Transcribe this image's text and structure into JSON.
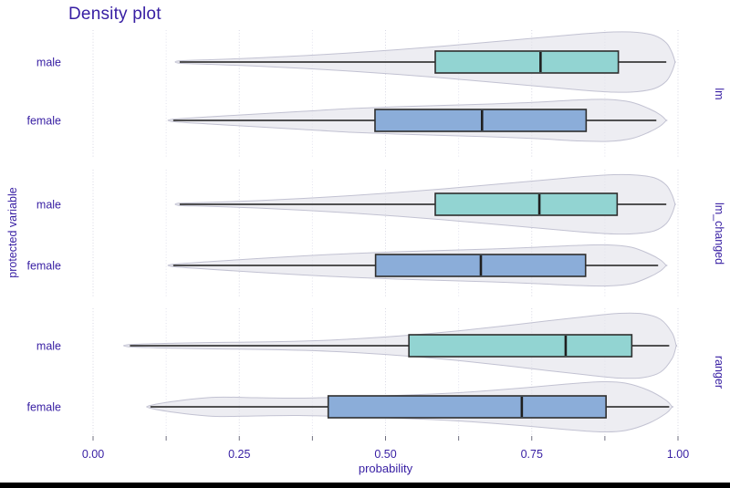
{
  "title": "Density plot",
  "chart_data": {
    "type": "violin",
    "title": "Density plot",
    "xlabel": "probability",
    "ylabel": "protected variable",
    "x_tick_labels": [
      "0.00",
      "0.25",
      "0.50",
      "0.75",
      "1.00"
    ],
    "x_tick_values": [
      0,
      0.25,
      0.5,
      0.75,
      1.0
    ],
    "x_minor_step": 0.125,
    "xlim": [
      0,
      1
    ],
    "grid": true,
    "legend_position": "none",
    "group_labels": [
      "male",
      "female"
    ],
    "colors": {
      "text": "#371ea3",
      "male_fill": "#92d4d2",
      "female_fill": "#8badd9",
      "violin_fill": "#e3e3eb",
      "violin_stroke": "#c2c2d2",
      "box_stroke": "#2e2e2e",
      "whisker": "#3a3a3a",
      "grid_major": "#d7d7e3",
      "grid_minor": "#e2e2ee",
      "tick": "#707080"
    },
    "facets": [
      {
        "label": "lm",
        "rows": [
          {
            "group": "male",
            "fill": "#92d4d2",
            "stats": {
              "min": 0.148,
              "q1": 0.585,
              "median": 0.765,
              "q3": 0.898,
              "max": 0.98
            },
            "density": [
              [
                0.147,
                1.2
              ],
              [
                0.2,
                2.5
              ],
              [
                0.28,
                4.5
              ],
              [
                0.36,
                7
              ],
              [
                0.44,
                10
              ],
              [
                0.52,
                13.5
              ],
              [
                0.6,
                17.5
              ],
              [
                0.68,
                22
              ],
              [
                0.76,
                26.5
              ],
              [
                0.83,
                30.5
              ],
              [
                0.89,
                33
              ],
              [
                0.93,
                32.5
              ],
              [
                0.96,
                29
              ],
              [
                0.98,
                21
              ],
              [
                0.99,
                10
              ],
              [
                0.995,
                0
              ]
            ]
          },
          {
            "group": "female",
            "fill": "#8badd9",
            "stats": {
              "min": 0.137,
              "q1": 0.482,
              "median": 0.665,
              "q3": 0.843,
              "max": 0.963
            },
            "density": [
              [
                0.136,
                1.2
              ],
              [
                0.2,
                4
              ],
              [
                0.28,
                7
              ],
              [
                0.36,
                10
              ],
              [
                0.44,
                13
              ],
              [
                0.52,
                15
              ],
              [
                0.6,
                16.5
              ],
              [
                0.68,
                18
              ],
              [
                0.76,
                20
              ],
              [
                0.83,
                22.5
              ],
              [
                0.88,
                23
              ],
              [
                0.92,
                20
              ],
              [
                0.95,
                13
              ],
              [
                0.97,
                6
              ],
              [
                0.98,
                0
              ]
            ]
          }
        ]
      },
      {
        "label": "lm_changed",
        "rows": [
          {
            "group": "male",
            "fill": "#92d4d2",
            "stats": {
              "min": 0.148,
              "q1": 0.585,
              "median": 0.763,
              "q3": 0.896,
              "max": 0.98
            },
            "density": [
              [
                0.147,
                1.2
              ],
              [
                0.2,
                2.2
              ],
              [
                0.28,
                4
              ],
              [
                0.36,
                6.5
              ],
              [
                0.44,
                9.5
              ],
              [
                0.52,
                13
              ],
              [
                0.6,
                17
              ],
              [
                0.68,
                21.5
              ],
              [
                0.76,
                26
              ],
              [
                0.83,
                30
              ],
              [
                0.89,
                32.5
              ],
              [
                0.93,
                32
              ],
              [
                0.96,
                29
              ],
              [
                0.98,
                21
              ],
              [
                0.99,
                10
              ],
              [
                0.995,
                0
              ]
            ]
          },
          {
            "group": "female",
            "fill": "#8badd9",
            "stats": {
              "min": 0.137,
              "q1": 0.483,
              "median": 0.663,
              "q3": 0.842,
              "max": 0.966
            },
            "density": [
              [
                0.136,
                1.2
              ],
              [
                0.2,
                4.2
              ],
              [
                0.28,
                7.5
              ],
              [
                0.36,
                10.5
              ],
              [
                0.44,
                13
              ],
              [
                0.52,
                15
              ],
              [
                0.6,
                16.5
              ],
              [
                0.68,
                18
              ],
              [
                0.76,
                20
              ],
              [
                0.83,
                22
              ],
              [
                0.88,
                22.5
              ],
              [
                0.92,
                20
              ],
              [
                0.95,
                13
              ],
              [
                0.97,
                6
              ],
              [
                0.98,
                0
              ]
            ]
          }
        ]
      },
      {
        "label": "ranger",
        "rows": [
          {
            "group": "male",
            "fill": "#92d4d2",
            "stats": {
              "min": 0.063,
              "q1": 0.54,
              "median": 0.808,
              "q3": 0.921,
              "max": 0.985
            },
            "density": [
              [
                0.062,
                1.2
              ],
              [
                0.14,
                2.8
              ],
              [
                0.22,
                3.6
              ],
              [
                0.3,
                4.2
              ],
              [
                0.38,
                5.5
              ],
              [
                0.46,
                8
              ],
              [
                0.54,
                11.5
              ],
              [
                0.62,
                16
              ],
              [
                0.7,
                21.5
              ],
              [
                0.78,
                27.5
              ],
              [
                0.85,
                32.5
              ],
              [
                0.9,
                35.5
              ],
              [
                0.94,
                35
              ],
              [
                0.97,
                29
              ],
              [
                0.99,
                14
              ],
              [
                0.997,
                0
              ]
            ]
          },
          {
            "group": "female",
            "fill": "#8badd9",
            "stats": {
              "min": 0.098,
              "q1": 0.402,
              "median": 0.733,
              "q3": 0.877,
              "max": 0.985
            },
            "density": [
              [
                0.098,
                1.5
              ],
              [
                0.15,
                7
              ],
              [
                0.21,
                10.5
              ],
              [
                0.28,
                10
              ],
              [
                0.35,
                9.5
              ],
              [
                0.42,
                10.5
              ],
              [
                0.5,
                12
              ],
              [
                0.58,
                14
              ],
              [
                0.66,
                17
              ],
              [
                0.74,
                21
              ],
              [
                0.81,
                25
              ],
              [
                0.87,
                27.5
              ],
              [
                0.91,
                26
              ],
              [
                0.95,
                18
              ],
              [
                0.98,
                7
              ],
              [
                0.99,
                0
              ]
            ]
          }
        ]
      }
    ]
  }
}
